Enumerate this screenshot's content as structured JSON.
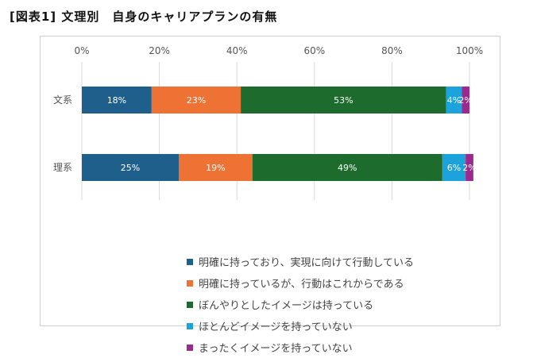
{
  "page_title": "[図表1] 文理別　自身のキャリアプランの有無",
  "chart_data": {
    "type": "bar",
    "orientation": "horizontal",
    "stacked": true,
    "percent_stacked": true,
    "title": "",
    "xlabel": "",
    "ylabel": "",
    "xlim": [
      0,
      100
    ],
    "x_ticks": [
      "0%",
      "20%",
      "40%",
      "60%",
      "80%",
      "100%"
    ],
    "categories": [
      "文系",
      "理系"
    ],
    "grid": "vertical",
    "legend_position": "bottom",
    "series": [
      {
        "name": "明確に持っており、実現に向けて行動している",
        "color": "#1f5f8b",
        "values": [
          18,
          25
        ],
        "labels": [
          "18%",
          "25%"
        ]
      },
      {
        "name": "明確に持っているが、行動はこれからである",
        "color": "#ed7233",
        "values": [
          23,
          19
        ],
        "labels": [
          "23%",
          "19%"
        ]
      },
      {
        "name": "ぼんやりとしたイメージは持っている",
        "color": "#1e6b2e",
        "values": [
          53,
          49
        ],
        "labels": [
          "53%",
          "49%"
        ]
      },
      {
        "name": "ほとんどイメージを持っていない",
        "color": "#1ca3dc",
        "values": [
          4,
          6
        ],
        "labels": [
          "4%",
          "6%"
        ]
      },
      {
        "name": "まったくイメージを持っていない",
        "color": "#9b2a8e",
        "values": [
          2,
          2
        ],
        "labels": [
          "2%",
          "2%"
        ]
      }
    ]
  }
}
